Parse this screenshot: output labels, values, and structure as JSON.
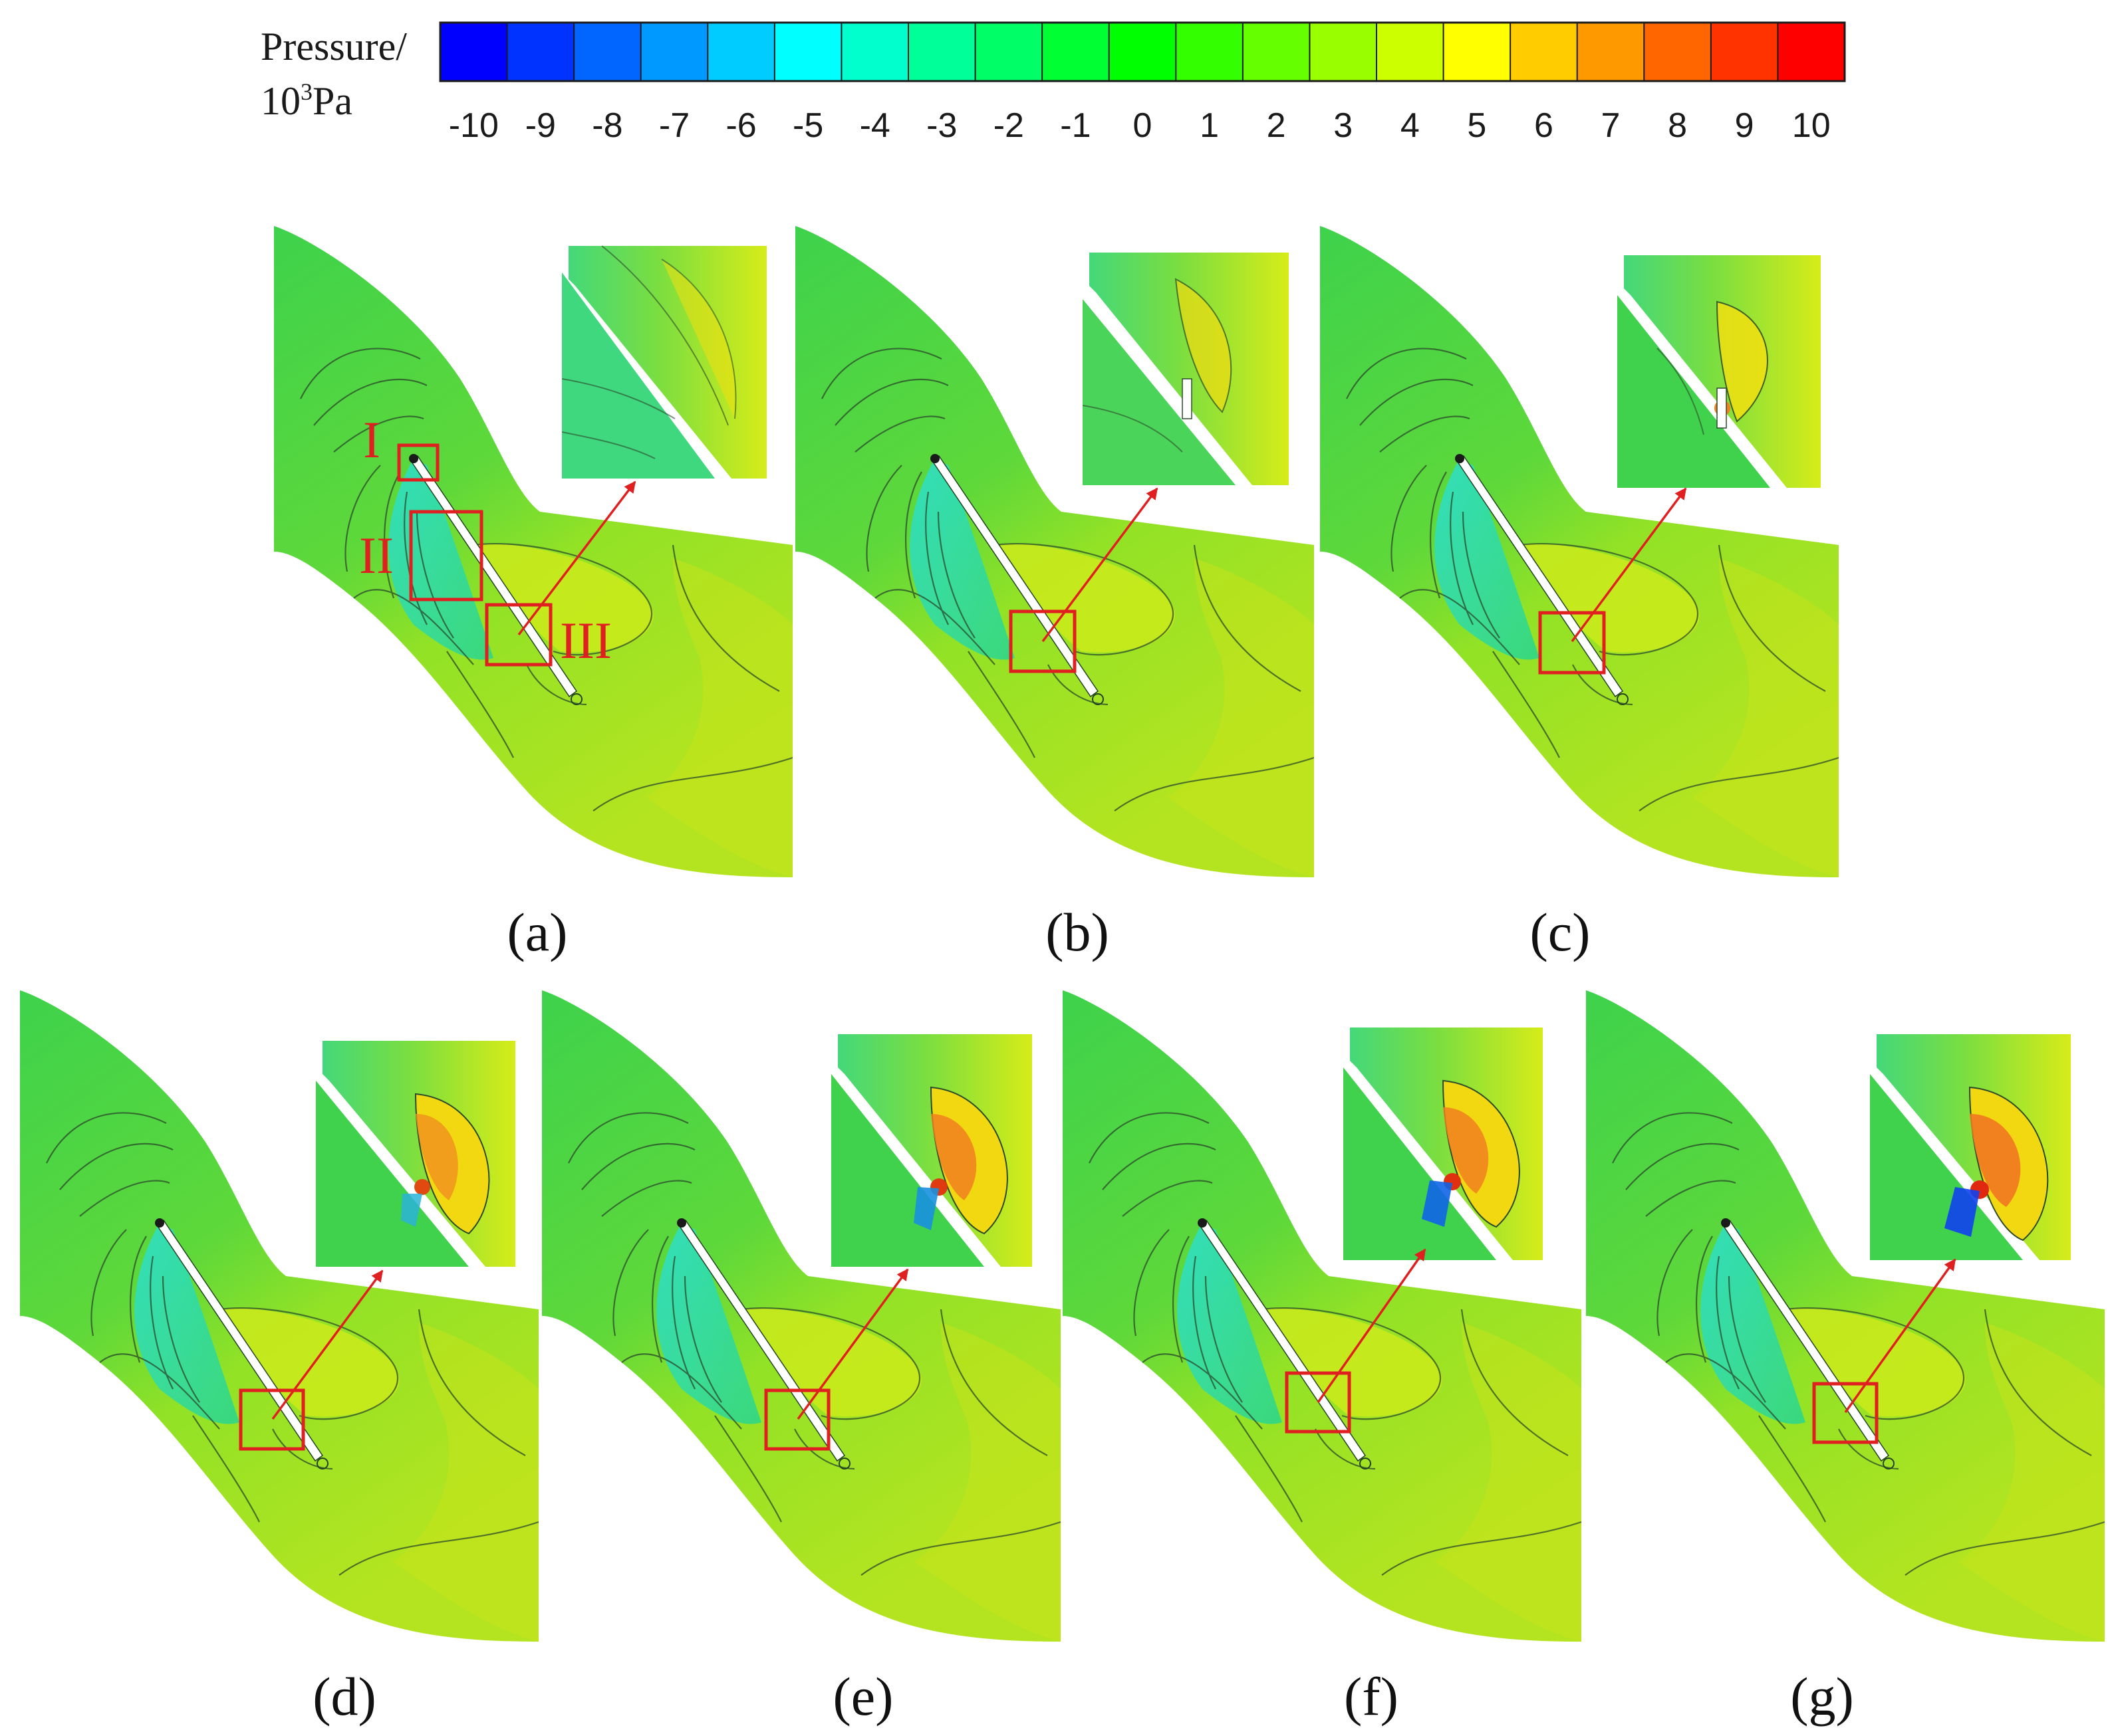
{
  "colorbar": {
    "title_line1": "Pressure/",
    "title_line2_base": "10",
    "title_line2_sup": "3",
    "title_line2_unit": "Pa",
    "levels": [
      -10,
      -9,
      -8,
      -7,
      -6,
      -5,
      -4,
      -3,
      -2,
      -1,
      0,
      1,
      2,
      3,
      4,
      5,
      6,
      7,
      8,
      9,
      10
    ],
    "tick_labels": [
      "-10",
      "-9",
      "-8",
      "-7",
      "-6",
      "-5",
      "-4",
      "-3",
      "-2",
      "-1",
      "0",
      "1",
      "2",
      "3",
      "4",
      "5",
      "6",
      "7",
      "8",
      "9",
      "10"
    ],
    "colors": [
      "#0000ff",
      "#0033ff",
      "#0066ff",
      "#0099ff",
      "#00ccff",
      "#00ffff",
      "#00ffcc",
      "#00ff99",
      "#00ff66",
      "#00ff33",
      "#00ff00",
      "#33ff00",
      "#66ff00",
      "#99ff00",
      "#ccff00",
      "#ffff00",
      "#ffcc00",
      "#ff9900",
      "#ff6600",
      "#ff3300",
      "#ff0000"
    ]
  },
  "panels": [
    {
      "id": "a",
      "label": "(a)",
      "insert_stage": 0,
      "regions": [
        "I",
        "II",
        "III"
      ]
    },
    {
      "id": "b",
      "label": "(b)",
      "insert_stage": 1
    },
    {
      "id": "c",
      "label": "(c)",
      "insert_stage": 2
    },
    {
      "id": "d",
      "label": "(d)",
      "insert_stage": 3
    },
    {
      "id": "e",
      "label": "(e)",
      "insert_stage": 4
    },
    {
      "id": "f",
      "label": "(f)",
      "insert_stage": 5
    },
    {
      "id": "g",
      "label": "(g)",
      "insert_stage": 6
    }
  ],
  "colors": {
    "annotation_red": "#e02020",
    "passage_inlet": "#3ec84a",
    "passage_outlet": "#a8e020",
    "suction_low": "#33d6b8",
    "pressure_high": "#f0d000"
  }
}
